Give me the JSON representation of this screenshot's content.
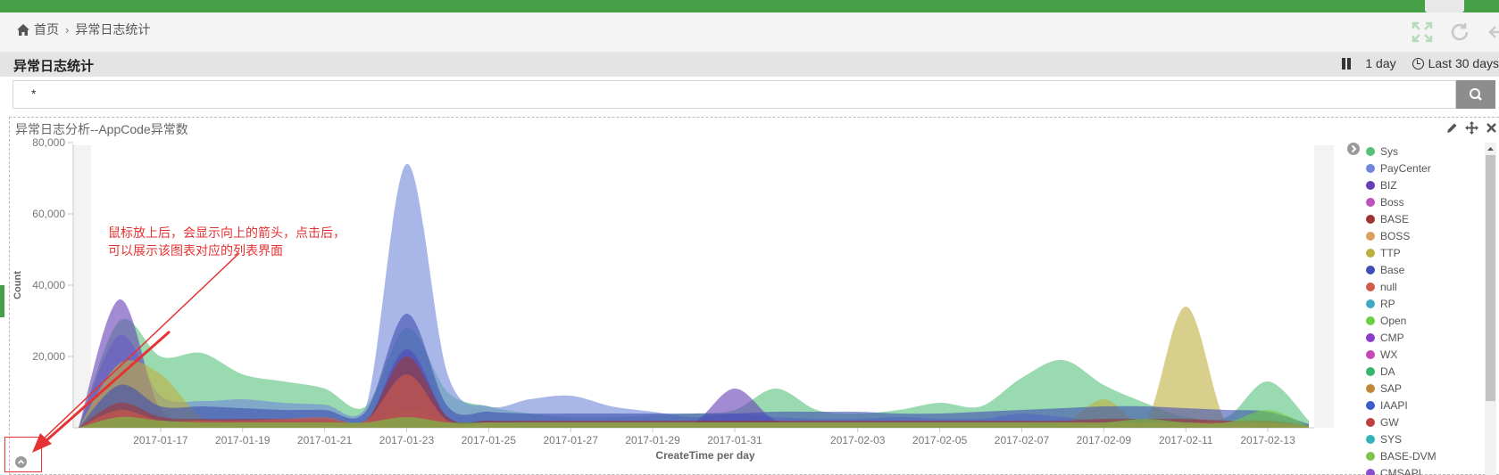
{
  "header": {
    "breadcrumb": {
      "home": "首页",
      "separator": "›",
      "current": "异常日志统计"
    }
  },
  "titlebar": {
    "title": "异常日志统计",
    "interval": "1 day",
    "time_range": "Last 30 days"
  },
  "search": {
    "value": "*"
  },
  "panel": {
    "title": "异常日志分析--AppCode异常数",
    "annotation": "鼠标放上后，会显示向上的箭头，点击后，\n可以展示该图表对应的列表界面"
  },
  "colors": {
    "brand": "#45a047",
    "annotation": "#e53333"
  },
  "legend": [
    {
      "label": "Sys",
      "color": "#57c17b"
    },
    {
      "label": "PayCenter",
      "color": "#6f87d8"
    },
    {
      "label": "BIZ",
      "color": "#663db8"
    },
    {
      "label": "Boss",
      "color": "#bc52bc"
    },
    {
      "label": "BASE",
      "color": "#9e3533"
    },
    {
      "label": "BOSS",
      "color": "#daa05d"
    },
    {
      "label": "TTP",
      "color": "#bfaf40"
    },
    {
      "label": "Base",
      "color": "#4050b2"
    },
    {
      "label": "null",
      "color": "#d05c4b"
    },
    {
      "label": "RP",
      "color": "#44a8c4"
    },
    {
      "label": "Open",
      "color": "#6fcc45"
    },
    {
      "label": "CMP",
      "color": "#8b3dcc"
    },
    {
      "label": "WX",
      "color": "#c847b3"
    },
    {
      "label": "DA",
      "color": "#36b56c"
    },
    {
      "label": "SAP",
      "color": "#c0893a"
    },
    {
      "label": "IAAPI",
      "color": "#3b5dc9"
    },
    {
      "label": "GW",
      "color": "#c04040"
    },
    {
      "label": "SYS",
      "color": "#36b3b9"
    },
    {
      "label": "BASE-DVM",
      "color": "#7fc24f"
    },
    {
      "label": "CMSAPI",
      "color": "#8a4fcf"
    }
  ],
  "chart_data": {
    "type": "area",
    "title": "异常日志分析--AppCode异常数",
    "xlabel": "CreateTime per day",
    "ylabel": "Count",
    "ylim": [
      0,
      80000
    ],
    "y_ticks": [
      "80,000",
      "60,000",
      "40,000",
      "20,000"
    ],
    "x_ticks": [
      "2017-01-17",
      "2017-01-19",
      "2017-01-21",
      "2017-01-23",
      "2017-01-25",
      "2017-01-27",
      "2017-01-29",
      "2017-01-31",
      "2017-02-03",
      "2017-02-05",
      "2017-02-07",
      "2017-02-09",
      "2017-02-11",
      "2017-02-13"
    ],
    "x": [
      "2017-01-15",
      "2017-01-16",
      "2017-01-17",
      "2017-01-18",
      "2017-01-19",
      "2017-01-20",
      "2017-01-21",
      "2017-01-22",
      "2017-01-23",
      "2017-01-24",
      "2017-01-25",
      "2017-01-26",
      "2017-01-27",
      "2017-01-28",
      "2017-01-29",
      "2017-01-30",
      "2017-01-31",
      "2017-02-01",
      "2017-02-02",
      "2017-02-03",
      "2017-02-04",
      "2017-02-05",
      "2017-02-06",
      "2017-02-07",
      "2017-02-08",
      "2017-02-09",
      "2017-02-10",
      "2017-02-11",
      "2017-02-12",
      "2017-02-13",
      "2017-02-14"
    ],
    "series": [
      {
        "name": "Sys",
        "values": [
          0,
          30000,
          20000,
          21000,
          15000,
          13000,
          11000,
          6000,
          28000,
          10000,
          6000,
          4000,
          3000,
          3000,
          3500,
          4000,
          5000,
          11000,
          5000,
          4000,
          5000,
          7000,
          6000,
          14000,
          19000,
          12000,
          7000,
          3000,
          3000,
          13000,
          2000
        ]
      },
      {
        "name": "PayCenter",
        "values": [
          0,
          26000,
          9000,
          7500,
          8000,
          7000,
          6500,
          5500,
          74000,
          15000,
          6000,
          8000,
          9000,
          6000,
          4500,
          3000,
          4000,
          3000,
          2500,
          2500,
          3000,
          2500,
          2500,
          4000,
          3000,
          2000,
          2000,
          1500,
          1500,
          2000,
          1000
        ]
      },
      {
        "name": "BIZ",
        "values": [
          0,
          36000,
          5000,
          2000,
          2000,
          2000,
          1500,
          1500,
          22000,
          3000,
          2000,
          1500,
          1500,
          1500,
          1500,
          1500,
          11000,
          2000,
          1500,
          1500,
          1500,
          1500,
          1500,
          1500,
          1500,
          1500,
          1500,
          1500,
          1500,
          1500,
          500
        ]
      },
      {
        "name": "TTP",
        "values": [
          0,
          18000,
          15000,
          3000,
          1500,
          1500,
          1500,
          1000,
          5000,
          2000,
          1000,
          1000,
          1000,
          1000,
          1000,
          1000,
          1000,
          1000,
          1000,
          1000,
          1000,
          1000,
          1000,
          1000,
          1000,
          8000,
          1000,
          34000,
          1000,
          1000,
          500
        ]
      },
      {
        "name": "Base",
        "values": [
          0,
          12000,
          6000,
          6000,
          5500,
          5000,
          5000,
          4500,
          32000,
          6000,
          4500,
          4000,
          4000,
          4000,
          4000,
          4000,
          4000,
          4500,
          4500,
          4500,
          4000,
          4000,
          4500,
          5000,
          5500,
          6000,
          6000,
          5500,
          5000,
          4500,
          1000
        ]
      },
      {
        "name": "BASE",
        "values": [
          0,
          7000,
          3000,
          2500,
          2500,
          2500,
          2500,
          2000,
          20000,
          3000,
          2000,
          2000,
          2000,
          2000,
          2000,
          2000,
          2000,
          2000,
          2000,
          2000,
          2000,
          2000,
          2000,
          2000,
          2000,
          2500,
          2500,
          2500,
          2000,
          2000,
          500
        ]
      },
      {
        "name": "null",
        "values": [
          0,
          5000,
          2000,
          2000,
          2000,
          2500,
          3000,
          2000,
          15000,
          2000,
          1500,
          1500,
          1500,
          1500,
          1500,
          1500,
          1500,
          1500,
          1500,
          1500,
          1500,
          1500,
          1500,
          1500,
          1500,
          1500,
          1500,
          1500,
          1500,
          1500,
          500
        ]
      },
      {
        "name": "Open",
        "values": [
          0,
          3000,
          2000,
          1500,
          1500,
          1500,
          1500,
          1500,
          3000,
          1500,
          1500,
          1500,
          1500,
          1500,
          1500,
          1500,
          1500,
          1500,
          1500,
          1500,
          1500,
          1500,
          1500,
          1500,
          1500,
          1500,
          2500,
          1500,
          1500,
          5000,
          500
        ]
      }
    ]
  }
}
